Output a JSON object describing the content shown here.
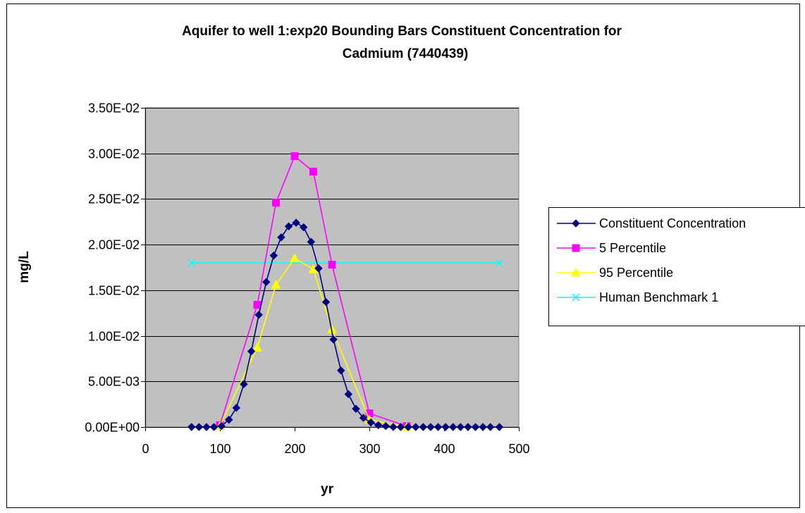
{
  "chart_data": {
    "type": "line",
    "title_lines": [
      "Aquifer to well 1:exp20 Bounding Bars Constituent Concentration for",
      "Cadmium (7440439)"
    ],
    "xlabel": "yr",
    "ylabel": "mg/L",
    "xlim": [
      0,
      500
    ],
    "ylim": [
      0,
      0.035
    ],
    "x_ticks": [
      0,
      100,
      200,
      300,
      400,
      500
    ],
    "x_tick_labels": [
      "0",
      "100",
      "200",
      "300",
      "400",
      "500"
    ],
    "y_ticks": [
      0,
      0.005,
      0.01,
      0.015,
      0.02,
      0.025,
      0.03,
      0.035
    ],
    "y_tick_labels": [
      "0.00E+00",
      "5.00E-03",
      "1.00E-02",
      "1.50E-02",
      "2.00E-02",
      "2.50E-02",
      "3.00E-02",
      "3.50E-02"
    ],
    "grid": "horizontal",
    "plot_background": "#c0c0c0",
    "legend_position": "right",
    "series": [
      {
        "name": "Constituent Concentration",
        "color": "#000080",
        "marker": "diamond",
        "x": [
          62,
          72,
          82,
          92,
          102,
          112,
          122,
          132,
          142,
          152,
          162,
          172,
          182,
          192,
          202,
          212,
          222,
          232,
          242,
          252,
          262,
          272,
          282,
          292,
          302,
          312,
          322,
          332,
          342,
          352,
          362,
          372,
          382,
          392,
          402,
          412,
          422,
          432,
          442,
          452,
          462,
          474
        ],
        "y": [
          0,
          0,
          0,
          0,
          0.0001,
          0.0008,
          0.0021,
          0.0047,
          0.0083,
          0.0123,
          0.0159,
          0.0188,
          0.0208,
          0.022,
          0.0224,
          0.0219,
          0.0203,
          0.0174,
          0.0137,
          0.0096,
          0.0062,
          0.0036,
          0.002,
          0.001,
          0.0005,
          0.0002,
          0.0001,
          0,
          0,
          0,
          0,
          0,
          0,
          0,
          0,
          0,
          0,
          0,
          0,
          0,
          0,
          0
        ]
      },
      {
        "name": "5 Percentile",
        "color": "#ff00ff",
        "marker": "square",
        "x": [
          100,
          150,
          175,
          200,
          225,
          250,
          300,
          350
        ],
        "y": [
          0.0002,
          0.0134,
          0.0246,
          0.0297,
          0.028,
          0.0178,
          0.0015,
          0.0001
        ]
      },
      {
        "name": "95 Percentile",
        "color": "#ffff00",
        "marker": "triangle",
        "x": [
          100,
          150,
          175,
          200,
          225,
          250,
          300,
          350
        ],
        "y": [
          0.0001,
          0.0087,
          0.0156,
          0.0185,
          0.0173,
          0.0107,
          0.0008,
          0
        ]
      },
      {
        "name": "Human Benchmark 1",
        "color": "#00ffff",
        "marker": "x",
        "x": [
          62,
          474
        ],
        "y": [
          0.018,
          0.018
        ]
      }
    ]
  }
}
